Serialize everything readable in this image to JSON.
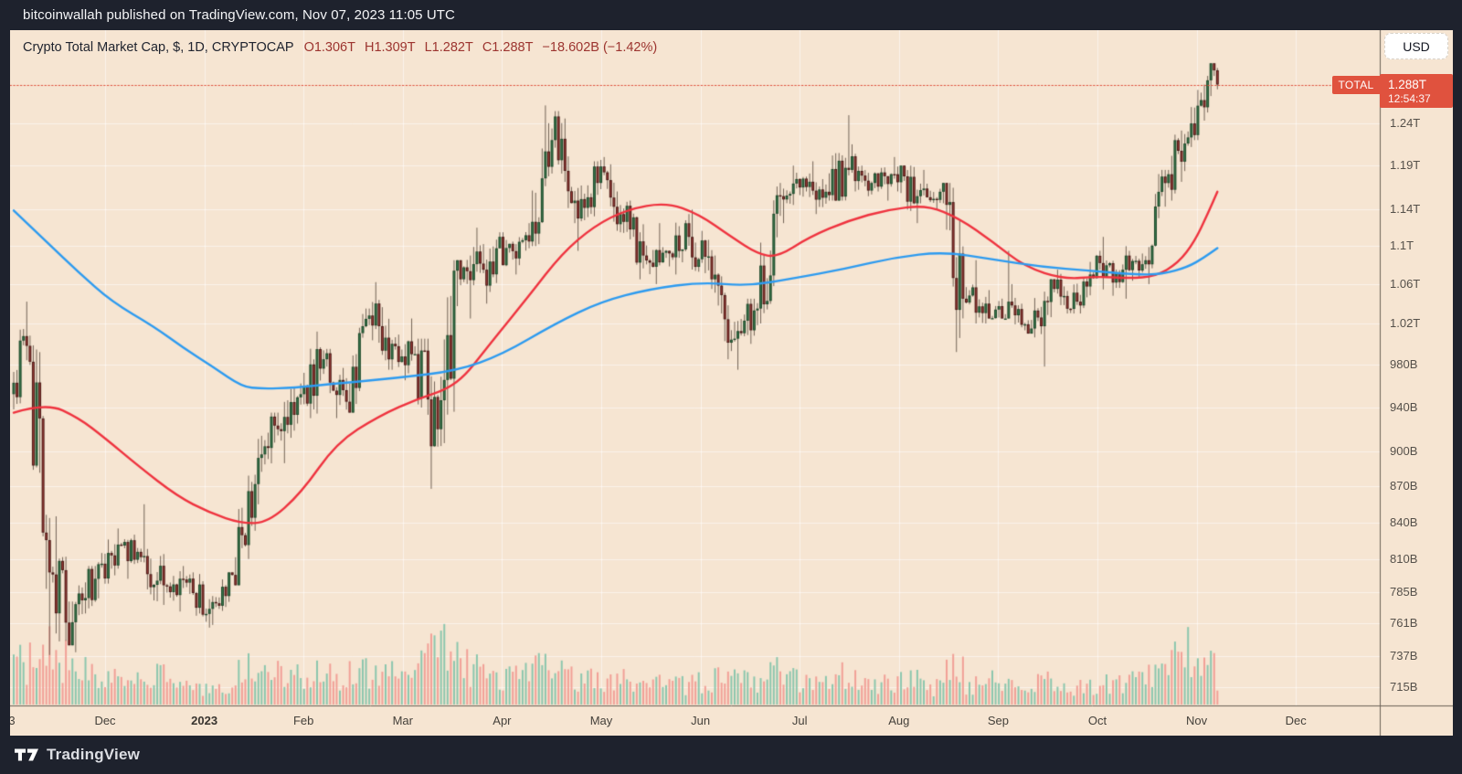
{
  "top_bar": {
    "text": "bitcoinwallah published on TradingView.com, Nov 07, 2023 11:05 UTC"
  },
  "footer": {
    "brand": "TradingView"
  },
  "chart": {
    "title": "Crypto Total Market Cap, $, 1D, CRYPTOCAP",
    "ohlc_items": [
      {
        "text": "O1.306T"
      },
      {
        "text": "H1.309T"
      },
      {
        "text": "L1.282T"
      },
      {
        "text": "C1.288T"
      },
      {
        "text": "−18.602B (−1.42%)"
      }
    ],
    "currency_button": "USD",
    "symbol_badge": "TOTAL",
    "price_tag": {
      "price": "1.288T",
      "countdown": "12:54:37"
    }
  },
  "chart_data": {
    "type": "candlestick",
    "title": "Crypto Total Market Cap, $, 1D, CRYPTOCAP",
    "timeframe": "1D",
    "y_scale": "log",
    "units": "billions USD",
    "x_range": [
      "Nov 2022",
      "Dec 2023 (blank after Nov 07 2023)"
    ],
    "current": {
      "open": 1306,
      "high": 1309,
      "low": 1282,
      "close": 1288,
      "change_b": -18.602,
      "change_pct": -1.42
    },
    "last_price_line": 1288,
    "price_ticks": [
      {
        "label": "1.24T",
        "value": 1240
      },
      {
        "label": "1.19T",
        "value": 1190
      },
      {
        "label": "1.14T",
        "value": 1140
      },
      {
        "label": "1.1T",
        "value": 1100
      },
      {
        "label": "1.06T",
        "value": 1060
      },
      {
        "label": "1.02T",
        "value": 1020
      },
      {
        "label": "980B",
        "value": 980
      },
      {
        "label": "940B",
        "value": 940
      },
      {
        "label": "900B",
        "value": 900
      },
      {
        "label": "870B",
        "value": 870
      },
      {
        "label": "840B",
        "value": 840
      },
      {
        "label": "810B",
        "value": 810
      },
      {
        "label": "785B",
        "value": 785
      },
      {
        "label": "761B",
        "value": 761
      },
      {
        "label": "737B",
        "value": 737
      },
      {
        "label": "715B",
        "value": 715
      }
    ],
    "month_ticks": [
      {
        "label": "3",
        "partial": true
      },
      {
        "label": "Dec"
      },
      {
        "label": "2023",
        "bold": true
      },
      {
        "label": "Feb"
      },
      {
        "label": "Mar"
      },
      {
        "label": "Apr"
      },
      {
        "label": "May"
      },
      {
        "label": "Jun"
      },
      {
        "label": "Jul"
      },
      {
        "label": "Aug"
      },
      {
        "label": "Sep"
      },
      {
        "label": "Oct"
      },
      {
        "label": "Nov"
      },
      {
        "label": "Dec"
      }
    ],
    "weekly_ohlc_note": "columns: [end_day_index(d0=2022-11-03), open, high, low, close, relative_volume]",
    "weekly_ohlc": [
      [
        4,
        952,
        1042,
        938,
        998,
        0.75
      ],
      [
        11,
        998,
        1008,
        738,
        800,
        1.0
      ],
      [
        18,
        800,
        845,
        745,
        762,
        0.8
      ],
      [
        25,
        762,
        805,
        740,
        795,
        0.55
      ],
      [
        32,
        795,
        835,
        780,
        822,
        0.45
      ],
      [
        39,
        822,
        830,
        795,
        812,
        0.4
      ],
      [
        46,
        812,
        855,
        775,
        790,
        0.5
      ],
      [
        53,
        790,
        805,
        770,
        792,
        0.3
      ],
      [
        60,
        792,
        800,
        758,
        772,
        0.3
      ],
      [
        67,
        772,
        800,
        760,
        798,
        0.35
      ],
      [
        74,
        798,
        880,
        790,
        872,
        0.6
      ],
      [
        81,
        872,
        935,
        855,
        920,
        0.55
      ],
      [
        88,
        920,
        962,
        890,
        952,
        0.5
      ],
      [
        95,
        952,
        1012,
        930,
        985,
        0.55
      ],
      [
        102,
        985,
        995,
        930,
        945,
        0.5
      ],
      [
        109,
        945,
        1035,
        935,
        1028,
        0.55
      ],
      [
        116,
        1028,
        1062,
        975,
        1000,
        0.6
      ],
      [
        123,
        1000,
        1025,
        965,
        990,
        0.5
      ],
      [
        130,
        990,
        1005,
        868,
        920,
        0.85
      ],
      [
        137,
        920,
        1085,
        905,
        1065,
        0.95
      ],
      [
        144,
        1065,
        1120,
        1025,
        1075,
        0.65
      ],
      [
        151,
        1075,
        1115,
        1040,
        1098,
        0.5
      ],
      [
        158,
        1098,
        1125,
        1070,
        1105,
        0.5
      ],
      [
        165,
        1105,
        1262,
        1100,
        1220,
        0.6
      ],
      [
        172,
        1220,
        1255,
        1125,
        1150,
        0.55
      ],
      [
        179,
        1150,
        1195,
        1095,
        1170,
        0.45
      ],
      [
        186,
        1170,
        1200,
        1115,
        1135,
        0.45
      ],
      [
        193,
        1135,
        1150,
        1065,
        1090,
        0.45
      ],
      [
        200,
        1090,
        1125,
        1060,
        1095,
        0.35
      ],
      [
        207,
        1095,
        1135,
        1070,
        1110,
        0.35
      ],
      [
        214,
        1110,
        1140,
        1055,
        1065,
        0.4
      ],
      [
        221,
        1065,
        1090,
        985,
        1005,
        0.55
      ],
      [
        228,
        1005,
        1045,
        975,
        1035,
        0.4
      ],
      [
        235,
        1035,
        1170,
        1020,
        1155,
        0.6
      ],
      [
        242,
        1155,
        1190,
        1125,
        1175,
        0.45
      ],
      [
        249,
        1175,
        1195,
        1135,
        1160,
        0.35
      ],
      [
        256,
        1160,
        1250,
        1150,
        1185,
        0.5
      ],
      [
        263,
        1185,
        1215,
        1155,
        1170,
        0.4
      ],
      [
        270,
        1170,
        1200,
        1150,
        1180,
        0.35
      ],
      [
        277,
        1180,
        1190,
        1125,
        1155,
        0.4
      ],
      [
        284,
        1155,
        1185,
        1140,
        1160,
        0.3
      ],
      [
        291,
        1160,
        1170,
        992,
        1045,
        0.6
      ],
      [
        298,
        1045,
        1085,
        1020,
        1040,
        0.35
      ],
      [
        305,
        1040,
        1095,
        1025,
        1042,
        0.4
      ],
      [
        312,
        1042,
        1060,
        1010,
        1015,
        0.3
      ],
      [
        319,
        1015,
        1065,
        978,
        1055,
        0.4
      ],
      [
        326,
        1055,
        1075,
        1030,
        1042,
        0.3
      ],
      [
        333,
        1042,
        1095,
        1030,
        1082,
        0.35
      ],
      [
        340,
        1082,
        1110,
        1048,
        1075,
        0.35
      ],
      [
        347,
        1075,
        1100,
        1045,
        1085,
        0.4
      ],
      [
        354,
        1085,
        1185,
        1060,
        1180,
        0.55
      ],
      [
        361,
        1180,
        1260,
        1150,
        1240,
        0.9
      ],
      [
        368,
        1240,
        1315,
        1220,
        1306,
        0.65
      ],
      [
        369,
        1306,
        1309,
        1282,
        1288,
        0.5
      ]
    ],
    "ma_fast_red": [
      [
        0,
        935
      ],
      [
        10,
        944
      ],
      [
        20,
        930
      ],
      [
        28,
        912
      ],
      [
        38,
        888
      ],
      [
        50,
        862
      ],
      [
        60,
        848
      ],
      [
        70,
        839
      ],
      [
        78,
        840
      ],
      [
        88,
        864
      ],
      [
        99,
        908
      ],
      [
        112,
        932
      ],
      [
        124,
        948
      ],
      [
        136,
        960
      ],
      [
        146,
        1000
      ],
      [
        158,
        1048
      ],
      [
        168,
        1092
      ],
      [
        178,
        1122
      ],
      [
        188,
        1140
      ],
      [
        200,
        1148
      ],
      [
        210,
        1135
      ],
      [
        220,
        1110
      ],
      [
        228,
        1092
      ],
      [
        234,
        1088
      ],
      [
        244,
        1110
      ],
      [
        256,
        1128
      ],
      [
        268,
        1140
      ],
      [
        280,
        1145
      ],
      [
        290,
        1130
      ],
      [
        300,
        1105
      ],
      [
        310,
        1078
      ],
      [
        322,
        1065
      ],
      [
        332,
        1068
      ],
      [
        342,
        1066
      ],
      [
        350,
        1068
      ],
      [
        357,
        1082
      ],
      [
        362,
        1105
      ],
      [
        366,
        1135
      ],
      [
        369,
        1160
      ]
    ],
    "ma_slow_blue": [
      [
        0,
        1139
      ],
      [
        10,
        1105
      ],
      [
        20,
        1072
      ],
      [
        30,
        1042
      ],
      [
        43,
        1017
      ],
      [
        52,
        996
      ],
      [
        61,
        978
      ],
      [
        70,
        959
      ],
      [
        76,
        957
      ],
      [
        86,
        958
      ],
      [
        99,
        962
      ],
      [
        117,
        967
      ],
      [
        136,
        974
      ],
      [
        150,
        990
      ],
      [
        166,
        1020
      ],
      [
        180,
        1042
      ],
      [
        195,
        1055
      ],
      [
        211,
        1062
      ],
      [
        225,
        1058
      ],
      [
        239,
        1066
      ],
      [
        255,
        1076
      ],
      [
        270,
        1088
      ],
      [
        285,
        1094
      ],
      [
        300,
        1086
      ],
      [
        315,
        1078
      ],
      [
        330,
        1074
      ],
      [
        343,
        1070
      ],
      [
        352,
        1070
      ],
      [
        360,
        1078
      ],
      [
        365,
        1088
      ],
      [
        369,
        1098
      ]
    ]
  },
  "colors": {
    "frame_bg": "#1e222d",
    "panel_bg": "#f6e5d2",
    "grid": "rgba(255,255,255,0.55)",
    "axis_line": "#6b6257",
    "tag_red": "#e0523e",
    "ohlc_text_red": "#9c342f",
    "ma_red": "#ef333f",
    "ma_blue": "#2d9bf0",
    "candle_up": "#37764a",
    "candle_up_border": "#1f4a2c",
    "candle_down": "#9c3a35",
    "candle_down_border": "#4a1a17",
    "wick": "#736457",
    "volume_up": "#8cc7ae",
    "volume_down": "#f2a097"
  }
}
